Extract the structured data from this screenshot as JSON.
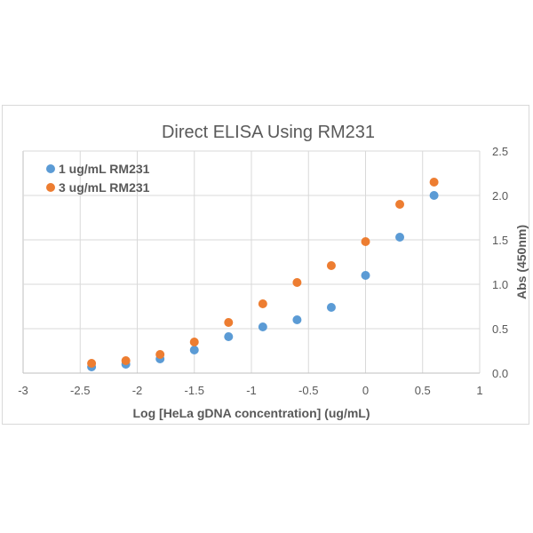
{
  "chart_data": {
    "type": "scatter",
    "title": "Direct ELISA Using RM231",
    "xlabel": "Log [HeLa gDNA concentration] (ug/mL)",
    "ylabel": "Abs (450nm)",
    "xlim": [
      -3,
      1
    ],
    "ylim": [
      0,
      2.5
    ],
    "x_ticks": [
      "-3",
      "-2.5",
      "-2",
      "-1.5",
      "-1",
      "-0.5",
      "0",
      "0.5",
      "1"
    ],
    "y_ticks": [
      "0.0",
      "0.5",
      "1.0",
      "1.5",
      "2.0",
      "2.5"
    ],
    "y_axis_side": "right",
    "grid": true,
    "legend_position": "top-left",
    "x": [
      -2.4,
      -2.1,
      -1.8,
      -1.5,
      -1.2,
      -0.9,
      -0.6,
      -0.3,
      0,
      0.3,
      0.6
    ],
    "series": [
      {
        "name": "1 ug/mL RM231",
        "color": "#5b9bd5",
        "values": [
          0.07,
          0.1,
          0.16,
          0.26,
          0.41,
          0.52,
          0.6,
          0.74,
          1.1,
          1.53,
          2.0
        ]
      },
      {
        "name": "3 ug/mL RM231",
        "color": "#ed7d31",
        "values": [
          0.11,
          0.14,
          0.21,
          0.35,
          0.57,
          0.78,
          1.02,
          1.21,
          1.48,
          1.9,
          2.15
        ]
      }
    ]
  }
}
